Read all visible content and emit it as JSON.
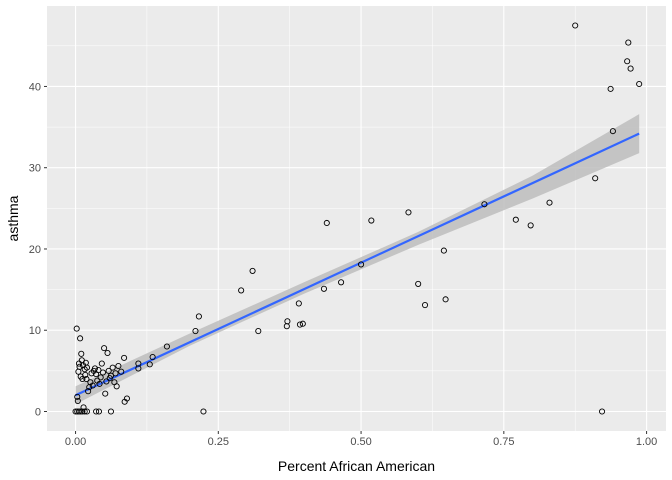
{
  "chart_data": {
    "type": "scatter",
    "xlabel": "Percent African American",
    "ylabel": "asthma",
    "xlim": [
      -0.05,
      1.034
    ],
    "ylim": [
      -2.4,
      49.9
    ],
    "x_ticks": [
      0.0,
      0.25,
      0.5,
      0.75,
      1.0
    ],
    "x_tick_labels": [
      "0.00",
      "0.25",
      "0.50",
      "0.75",
      "1.00"
    ],
    "y_ticks": [
      0,
      10,
      20,
      30,
      40
    ],
    "y_tick_labels": [
      "0",
      "10",
      "20",
      "30",
      "40"
    ],
    "grid": true,
    "legend": "none",
    "colors": {
      "panel": "#ebebeb",
      "grid": "#ffffff",
      "point_stroke": "#000000",
      "trend": "#3366ff",
      "band": "#bdbdbd"
    },
    "points": [
      {
        "x": 0.0,
        "y": 0.0
      },
      {
        "x": 0.003,
        "y": 0.0
      },
      {
        "x": 0.006,
        "y": 0.0
      },
      {
        "x": 0.009,
        "y": 0.0
      },
      {
        "x": 0.012,
        "y": 0.0
      },
      {
        "x": 0.016,
        "y": 0.0
      },
      {
        "x": 0.02,
        "y": 0.0
      },
      {
        "x": 0.036,
        "y": 0.0
      },
      {
        "x": 0.041,
        "y": 0.0
      },
      {
        "x": 0.062,
        "y": 0.0
      },
      {
        "x": 0.224,
        "y": 0.0
      },
      {
        "x": 0.922,
        "y": 0.0
      },
      {
        "x": 0.002,
        "y": 10.2
      },
      {
        "x": 0.003,
        "y": 1.8
      },
      {
        "x": 0.004,
        "y": 1.3
      },
      {
        "x": 0.005,
        "y": 4.9
      },
      {
        "x": 0.006,
        "y": 5.9
      },
      {
        "x": 0.007,
        "y": 5.5
      },
      {
        "x": 0.008,
        "y": 9.0
      },
      {
        "x": 0.009,
        "y": 4.3
      },
      {
        "x": 0.01,
        "y": 7.1
      },
      {
        "x": 0.011,
        "y": 6.3
      },
      {
        "x": 0.012,
        "y": 4.0
      },
      {
        "x": 0.013,
        "y": 5.7
      },
      {
        "x": 0.014,
        "y": 0.5
      },
      {
        "x": 0.016,
        "y": 5.2
      },
      {
        "x": 0.017,
        "y": 4.5
      },
      {
        "x": 0.018,
        "y": 6.0
      },
      {
        "x": 0.019,
        "y": 4.0
      },
      {
        "x": 0.02,
        "y": 5.4
      },
      {
        "x": 0.022,
        "y": 2.5
      },
      {
        "x": 0.024,
        "y": 3.0
      },
      {
        "x": 0.026,
        "y": 3.6
      },
      {
        "x": 0.028,
        "y": 4.7
      },
      {
        "x": 0.03,
        "y": 3.2
      },
      {
        "x": 0.032,
        "y": 5.0
      },
      {
        "x": 0.034,
        "y": 5.3
      },
      {
        "x": 0.036,
        "y": 4.6
      },
      {
        "x": 0.038,
        "y": 3.8
      },
      {
        "x": 0.04,
        "y": 5.1
      },
      {
        "x": 0.042,
        "y": 3.4
      },
      {
        "x": 0.044,
        "y": 4.2
      },
      {
        "x": 0.046,
        "y": 5.9
      },
      {
        "x": 0.048,
        "y": 4.8
      },
      {
        "x": 0.05,
        "y": 7.8
      },
      {
        "x": 0.052,
        "y": 2.2
      },
      {
        "x": 0.054,
        "y": 3.7
      },
      {
        "x": 0.056,
        "y": 7.2
      },
      {
        "x": 0.058,
        "y": 5.0
      },
      {
        "x": 0.06,
        "y": 4.1
      },
      {
        "x": 0.062,
        "y": 4.4
      },
      {
        "x": 0.065,
        "y": 5.4
      },
      {
        "x": 0.068,
        "y": 3.6
      },
      {
        "x": 0.07,
        "y": 4.7
      },
      {
        "x": 0.072,
        "y": 3.1
      },
      {
        "x": 0.075,
        "y": 5.6
      },
      {
        "x": 0.08,
        "y": 4.9
      },
      {
        "x": 0.085,
        "y": 6.6
      },
      {
        "x": 0.086,
        "y": 1.2
      },
      {
        "x": 0.09,
        "y": 1.6
      },
      {
        "x": 0.11,
        "y": 5.3
      },
      {
        "x": 0.11,
        "y": 5.9
      },
      {
        "x": 0.13,
        "y": 5.8
      },
      {
        "x": 0.135,
        "y": 6.7
      },
      {
        "x": 0.16,
        "y": 8.0
      },
      {
        "x": 0.21,
        "y": 9.9
      },
      {
        "x": 0.216,
        "y": 11.7
      },
      {
        "x": 0.29,
        "y": 14.9
      },
      {
        "x": 0.31,
        "y": 17.3
      },
      {
        "x": 0.32,
        "y": 9.9
      },
      {
        "x": 0.37,
        "y": 10.5
      },
      {
        "x": 0.371,
        "y": 11.1
      },
      {
        "x": 0.391,
        "y": 13.3
      },
      {
        "x": 0.393,
        "y": 10.7
      },
      {
        "x": 0.398,
        "y": 10.8
      },
      {
        "x": 0.435,
        "y": 15.1
      },
      {
        "x": 0.44,
        "y": 23.2
      },
      {
        "x": 0.465,
        "y": 15.9
      },
      {
        "x": 0.5,
        "y": 18.1
      },
      {
        "x": 0.518,
        "y": 23.5
      },
      {
        "x": 0.583,
        "y": 24.5
      },
      {
        "x": 0.6,
        "y": 15.7
      },
      {
        "x": 0.612,
        "y": 13.1
      },
      {
        "x": 0.645,
        "y": 19.8
      },
      {
        "x": 0.648,
        "y": 13.8
      },
      {
        "x": 0.716,
        "y": 25.5
      },
      {
        "x": 0.771,
        "y": 23.6
      },
      {
        "x": 0.797,
        "y": 22.9
      },
      {
        "x": 0.83,
        "y": 25.7
      },
      {
        "x": 0.875,
        "y": 47.5
      },
      {
        "x": 0.91,
        "y": 28.7
      },
      {
        "x": 0.937,
        "y": 39.7
      },
      {
        "x": 0.941,
        "y": 34.5
      },
      {
        "x": 0.966,
        "y": 43.1
      },
      {
        "x": 0.968,
        "y": 45.4
      },
      {
        "x": 0.972,
        "y": 42.2
      },
      {
        "x": 0.987,
        "y": 40.3
      }
    ],
    "trend_line": {
      "x": [
        0.0,
        0.987
      ],
      "y": [
        2.0,
        34.2
      ]
    },
    "confidence_band": {
      "x": [
        0.0,
        0.2,
        0.4,
        0.6,
        0.8,
        0.987
      ],
      "lower": [
        0.9,
        8.1,
        14.5,
        20.5,
        26.2,
        31.8
      ],
      "upper": [
        3.1,
        9.6,
        15.9,
        22.1,
        29.0,
        36.6
      ]
    }
  }
}
